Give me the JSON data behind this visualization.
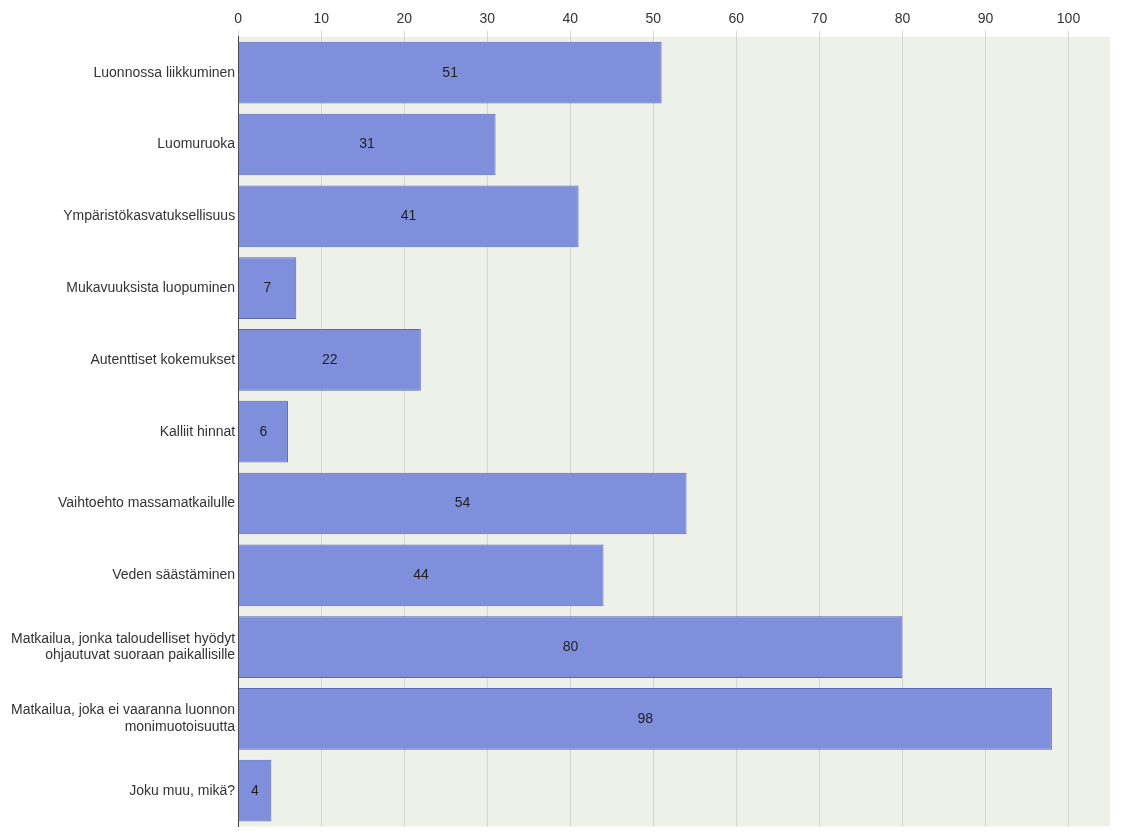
{
  "chart_data": {
    "type": "bar",
    "orientation": "horizontal",
    "categories": [
      "Luonnossa liikkuminen",
      "Luomuruoka",
      "Ympäristökasvatuksellisuus",
      "Mukavuuksista luopuminen",
      "Autenttiset kokemukset",
      "Kalliit hinnat",
      "Vaihtoehto massamatkailulle",
      "Veden säästäminen",
      "Matkailua, jonka taloudelliset hyödyt ohjautuvat suoraan paikallisille",
      "Matkailua, joka ei vaaranna luonnon monimuotoisuutta",
      "Joku muu, mikä?"
    ],
    "values": [
      51,
      31,
      41,
      7,
      22,
      6,
      54,
      44,
      80,
      98,
      4
    ],
    "color": "#7f8fdc",
    "xlim": [
      0,
      105
    ],
    "xticks": [
      0,
      10,
      20,
      30,
      40,
      50,
      60,
      70,
      80,
      90,
      100
    ],
    "grid": "x",
    "legend": false,
    "data_labels": true
  }
}
